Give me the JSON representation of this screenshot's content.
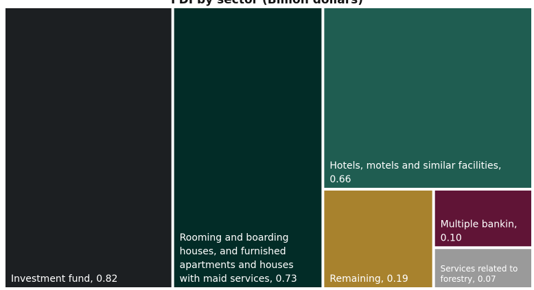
{
  "chart_data": {
    "type": "treemap",
    "title": "FDI by sector (Billion dollars)",
    "unit": "Billion dollars",
    "items": [
      {
        "name": "Investment fund",
        "value": 0.82,
        "label_lines": [
          "Investment fund, 0.82"
        ],
        "color": "#1c1f22"
      },
      {
        "name": "Rooming and boarding houses, and furnished apartments and houses with maid services",
        "value": 0.73,
        "label_lines": [
          "Rooming and boarding",
          "houses, and furnished",
          "apartments and houses",
          "with maid services, 0.73"
        ],
        "color": "#022c27"
      },
      {
        "name": "Hotels, motels and similar facilities",
        "value": 0.66,
        "label_lines": [
          "Hotels, motels and similar facilities,",
          "0.66"
        ],
        "color": "#1f5d51"
      },
      {
        "name": "Remaining",
        "value": 0.19,
        "label_lines": [
          "Remaining, 0.19"
        ],
        "color": "#a8822d"
      },
      {
        "name": "Multiple bankin",
        "value": 0.1,
        "label_lines": [
          "Multiple bankin,",
          "0.10"
        ],
        "color": "#601436"
      },
      {
        "name": "Services related to forestry",
        "value": 0.07,
        "label_lines": [
          "Services related to",
          "forestry, 0.07"
        ],
        "color": "#9a9a9a"
      }
    ]
  }
}
